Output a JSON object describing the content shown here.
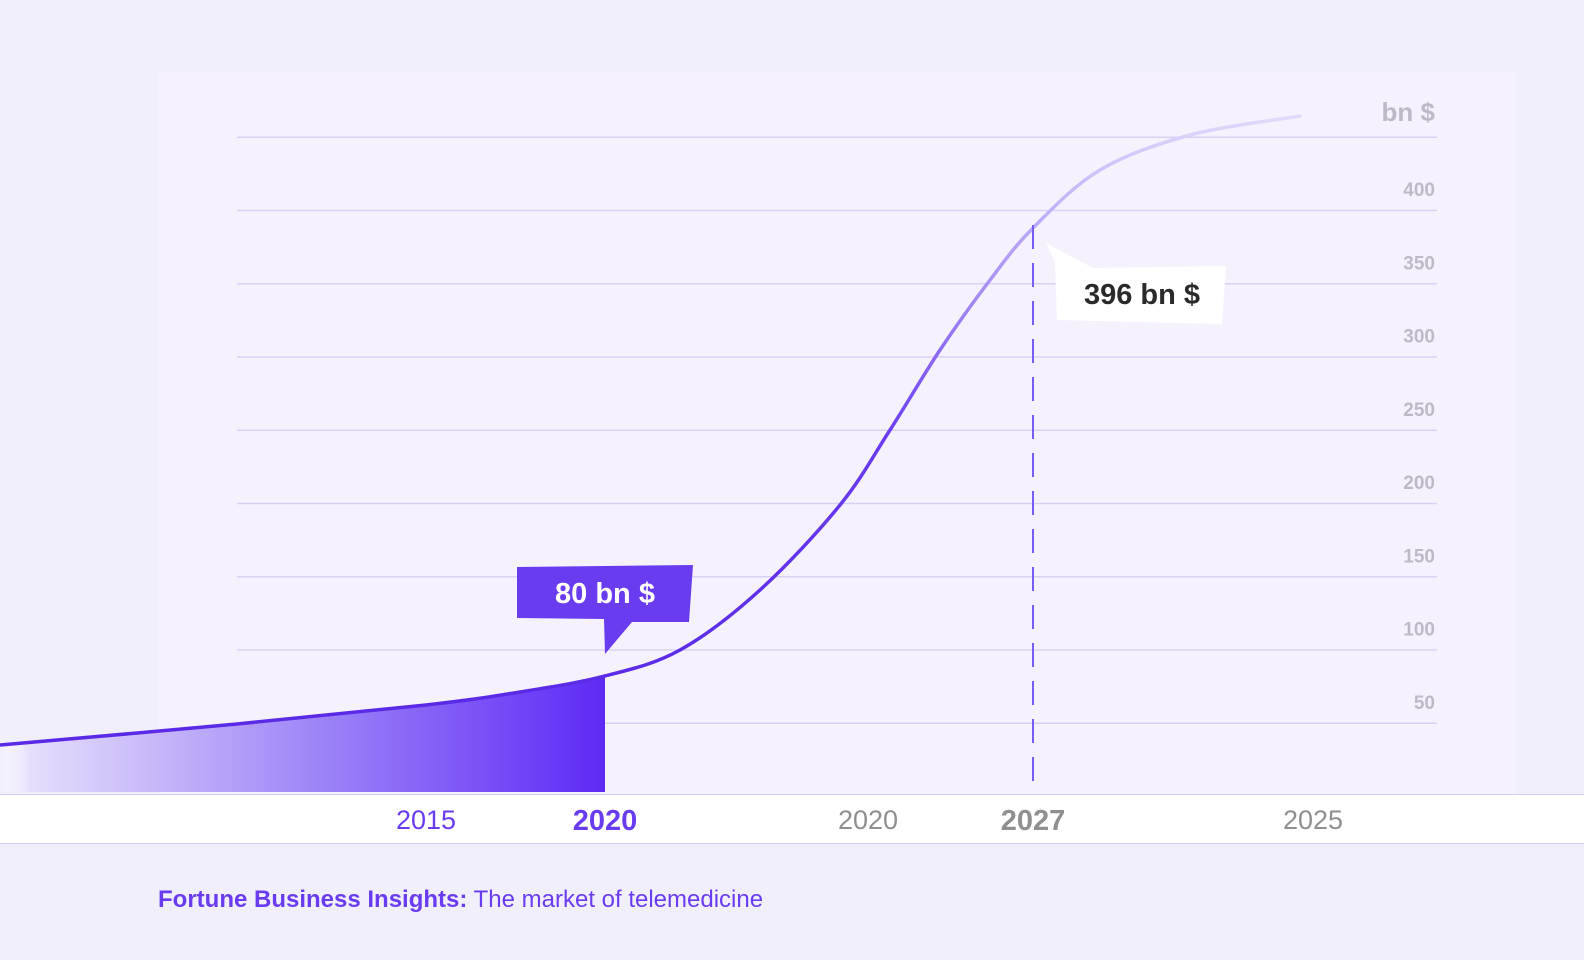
{
  "chart_data": {
    "type": "area",
    "unit": "bn $",
    "y_ticks": [
      "50",
      "100",
      "150",
      "200",
      "250",
      "300",
      "350",
      "400"
    ],
    "ylim": [
      0,
      450
    ],
    "grid": true,
    "x_axis_labels": [
      {
        "text": "2015",
        "style": "purple"
      },
      {
        "text": "2020",
        "style": "purple-bold"
      },
      {
        "text": "2020",
        "style": "gray"
      },
      {
        "text": "2027",
        "style": "gray-bold"
      },
      {
        "text": "2025",
        "style": "gray"
      }
    ],
    "series": [
      {
        "values": [
          {
            "x": "2015",
            "y": 50
          },
          {
            "x": "2020",
            "y": 80
          },
          {
            "x": "2027",
            "y": 396
          }
        ]
      }
    ],
    "annotations": [
      {
        "text": "80 bn $",
        "x": "2020",
        "y": 80,
        "style": "filled"
      },
      {
        "text": "396 bn $",
        "x": "2027",
        "y": 396,
        "style": "white"
      }
    ]
  },
  "colors": {
    "accent": "#6a3cf0",
    "line_light": "#b7a6f3",
    "callout_fill": "#6a3cf0",
    "gray_text": "#8f8f8f",
    "grid": "#d9d1f3"
  },
  "source": {
    "name": "Fortune Business Insights:",
    "text": "The market of telemedicine"
  }
}
